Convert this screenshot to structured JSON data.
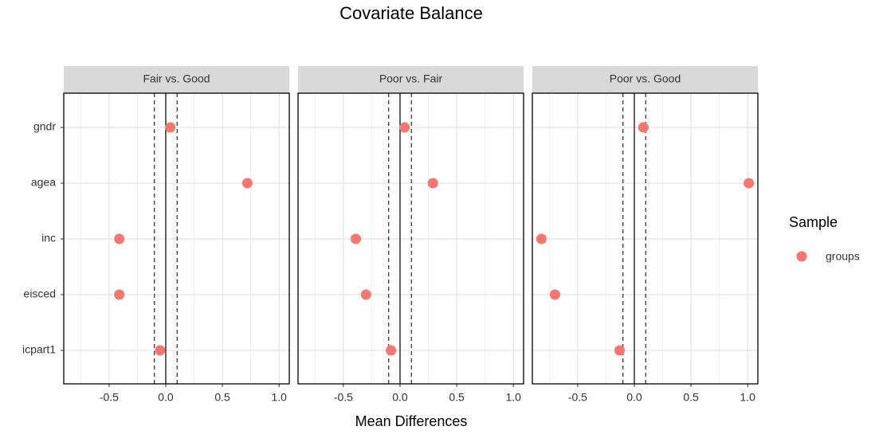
{
  "chart_data": {
    "type": "scatter",
    "title": "Covariate Balance",
    "x_label": "Mean Differences",
    "categories": [
      "gndr",
      "agea",
      "inc",
      "eisced",
      "icpart1"
    ],
    "facets": [
      {
        "title": "Fair vs. Good",
        "values": [
          0.04,
          0.72,
          -0.41,
          -0.41,
          -0.05
        ]
      },
      {
        "title": "Poor vs. Fair",
        "values": [
          0.04,
          0.29,
          -0.39,
          -0.3,
          -0.08
        ]
      },
      {
        "title": "Poor vs. Good",
        "values": [
          0.08,
          1.01,
          -0.82,
          -0.7,
          -0.13
        ]
      }
    ],
    "series_name": "groups",
    "color": "#F8766D",
    "legend_title": "Sample",
    "legend_position": "right",
    "xlim": [
      -0.9,
      1.09
    ],
    "xticks": [
      -0.5,
      {
        "value": 0,
        "label": "0.0"
      },
      0.5,
      {
        "value": 1,
        "label": "1.0"
      }
    ],
    "minor_xticks": [
      -0.75,
      -0.25,
      0.25,
      0.75
    ],
    "reference_line": 0,
    "thresholds": [
      -0.1,
      0.1
    ],
    "grid": true
  }
}
